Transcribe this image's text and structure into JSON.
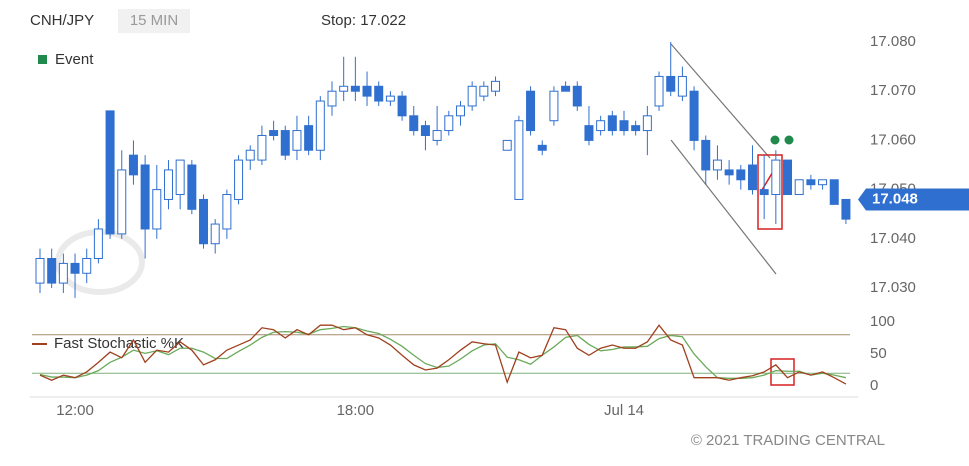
{
  "chart_data": [
    {
      "type": "candlestick",
      "title": "CNH/JPY",
      "interval": "15 MIN",
      "stop": "Stop: 17.022",
      "event_legend": "Event",
      "up_color": "#2f6fcf",
      "down_color": "#2f6fcf",
      "last_price": 17.048,
      "copyright": "© 2021 TRADING CENTRAL",
      "categories": [
        null,
        null,
        null,
        "12:00",
        null,
        null,
        null,
        null,
        null,
        null,
        null,
        null,
        null,
        null,
        null,
        null,
        null,
        null,
        null,
        null,
        null,
        null,
        null,
        null,
        null,
        null,
        null,
        "18:00",
        null,
        null,
        null,
        null,
        null,
        null,
        null,
        null,
        null,
        null,
        null,
        null,
        null,
        null,
        null,
        null,
        null,
        null,
        null,
        null,
        null,
        null,
        "Jul 14",
        null,
        null,
        null,
        null,
        null,
        null,
        null,
        null,
        null,
        null,
        null,
        null,
        null,
        null,
        null,
        null,
        null,
        null,
        null
      ],
      "open": [
        17.031,
        17.036,
        17.031,
        17.035,
        17.033,
        17.036,
        17.066,
        17.041,
        17.057,
        17.055,
        17.042,
        17.048,
        17.049,
        17.055,
        17.048,
        17.039,
        17.042,
        17.048,
        17.056,
        17.056,
        17.062,
        17.062,
        17.058,
        17.063,
        17.058,
        17.067,
        17.07,
        17.071,
        17.071,
        17.071,
        17.068,
        17.069,
        17.065,
        17.063,
        17.06,
        17.062,
        17.065,
        17.067,
        17.069,
        17.07,
        17.058,
        17.048,
        17.07,
        17.059,
        17.064,
        17.071,
        17.071,
        17.063,
        17.062,
        17.065,
        17.064,
        17.063,
        17.062,
        17.067,
        17.073,
        17.069,
        17.07,
        17.06,
        17.054,
        17.054,
        17.054,
        17.055,
        17.05,
        17.049,
        17.056,
        17.049,
        17.052,
        17.051,
        17.052,
        17.048
      ],
      "high": [
        17.038,
        17.038,
        17.037,
        17.037,
        17.038,
        17.044,
        17.066,
        17.058,
        17.06,
        17.057,
        17.055,
        17.056,
        17.056,
        17.056,
        17.049,
        17.044,
        17.05,
        17.057,
        17.059,
        17.063,
        17.064,
        17.063,
        17.065,
        17.065,
        17.069,
        17.072,
        17.077,
        17.077,
        17.074,
        17.072,
        17.07,
        17.07,
        17.067,
        17.064,
        17.067,
        17.066,
        17.068,
        17.072,
        17.072,
        17.073,
        17.06,
        17.065,
        17.071,
        17.06,
        17.071,
        17.072,
        17.072,
        17.067,
        17.065,
        17.066,
        17.066,
        17.064,
        17.067,
        17.074,
        17.08,
        17.075,
        17.071,
        17.061,
        17.059,
        17.056,
        17.055,
        17.059,
        17.057,
        17.058,
        17.056,
        17.052,
        17.053,
        17.052,
        17.052,
        17.048
      ],
      "low": [
        17.029,
        17.03,
        17.029,
        17.028,
        17.031,
        17.035,
        17.04,
        17.04,
        17.051,
        17.036,
        17.04,
        17.046,
        17.046,
        17.045,
        17.038,
        17.037,
        17.04,
        17.047,
        17.054,
        17.055,
        17.06,
        17.056,
        17.056,
        17.057,
        17.056,
        17.065,
        17.068,
        17.068,
        17.067,
        17.067,
        17.067,
        17.064,
        17.061,
        17.058,
        17.059,
        17.061,
        17.063,
        17.066,
        17.068,
        17.069,
        17.058,
        17.048,
        17.061,
        17.057,
        17.063,
        17.07,
        17.066,
        17.059,
        17.061,
        17.061,
        17.061,
        17.061,
        17.057,
        17.066,
        17.069,
        17.068,
        17.058,
        17.051,
        17.052,
        17.051,
        17.05,
        17.049,
        17.044,
        17.043,
        17.049,
        17.049,
        17.05,
        17.05,
        17.047,
        17.043
      ],
      "close": [
        17.036,
        17.031,
        17.035,
        17.033,
        17.036,
        17.042,
        17.041,
        17.054,
        17.053,
        17.042,
        17.05,
        17.054,
        17.056,
        17.046,
        17.039,
        17.043,
        17.049,
        17.056,
        17.058,
        17.061,
        17.061,
        17.057,
        17.062,
        17.058,
        17.068,
        17.07,
        17.071,
        17.07,
        17.069,
        17.068,
        17.069,
        17.065,
        17.062,
        17.061,
        17.062,
        17.065,
        17.067,
        17.071,
        17.071,
        17.072,
        17.06,
        17.064,
        17.062,
        17.058,
        17.07,
        17.07,
        17.067,
        17.06,
        17.064,
        17.062,
        17.062,
        17.062,
        17.065,
        17.073,
        17.07,
        17.073,
        17.06,
        17.054,
        17.056,
        17.053,
        17.052,
        17.05,
        17.049,
        17.056,
        17.049,
        17.052,
        17.051,
        17.052,
        17.047,
        17.044
      ],
      "ylim": [
        17.026,
        17.085
      ],
      "yticks": [
        {
          "value": 17.08,
          "label": "17.080"
        },
        {
          "value": 17.07,
          "label": "17.070"
        },
        {
          "value": 17.06,
          "label": "17.060"
        },
        {
          "value": 17.05,
          "label": "17.050"
        },
        {
          "value": 17.04,
          "label": "17.040"
        },
        {
          "value": 17.03,
          "label": "17.030"
        }
      ]
    },
    {
      "type": "line",
      "legend": "Fast Stochastic %K",
      "series": [
        {
          "name": "Fast Stochastic %K",
          "color": "#a0401f",
          "values": [
            17,
            9,
            17,
            13,
            22,
            37,
            53,
            44,
            72,
            37,
            56,
            53,
            69,
            56,
            33,
            41,
            56,
            64,
            72,
            91,
            88,
            75,
            88,
            80,
            95,
            95,
            88,
            91,
            80,
            75,
            64,
            48,
            33,
            25,
            28,
            41,
            56,
            69,
            66,
            64,
            6,
            53,
            44,
            48,
            91,
            88,
            59,
            48,
            59,
            64,
            59,
            59,
            69,
            95,
            72,
            64,
            13,
            13,
            13,
            9,
            13,
            16,
            22,
            33,
            13,
            22,
            17,
            22,
            13,
            3
          ]
        },
        {
          "color": "#6aaa5a",
          "values": [
            18,
            14,
            14,
            13,
            17,
            24,
            37,
            45,
            56,
            51,
            55,
            49,
            59,
            59,
            53,
            43,
            43,
            54,
            64,
            76,
            84,
            85,
            84,
            81,
            88,
            90,
            93,
            91,
            86,
            82,
            73,
            62,
            48,
            35,
            29,
            31,
            42,
            55,
            64,
            66,
            45,
            41,
            34,
            48,
            61,
            76,
            79,
            65,
            55,
            57,
            61,
            61,
            62,
            74,
            79,
            77,
            50,
            30,
            13,
            12,
            12,
            13,
            17,
            24,
            23,
            23,
            17,
            20,
            17,
            13
          ]
        }
      ],
      "levels": [
        80,
        20
      ],
      "ylim": [
        -10,
        110
      ],
      "yticks": [
        100,
        50,
        0
      ]
    }
  ]
}
